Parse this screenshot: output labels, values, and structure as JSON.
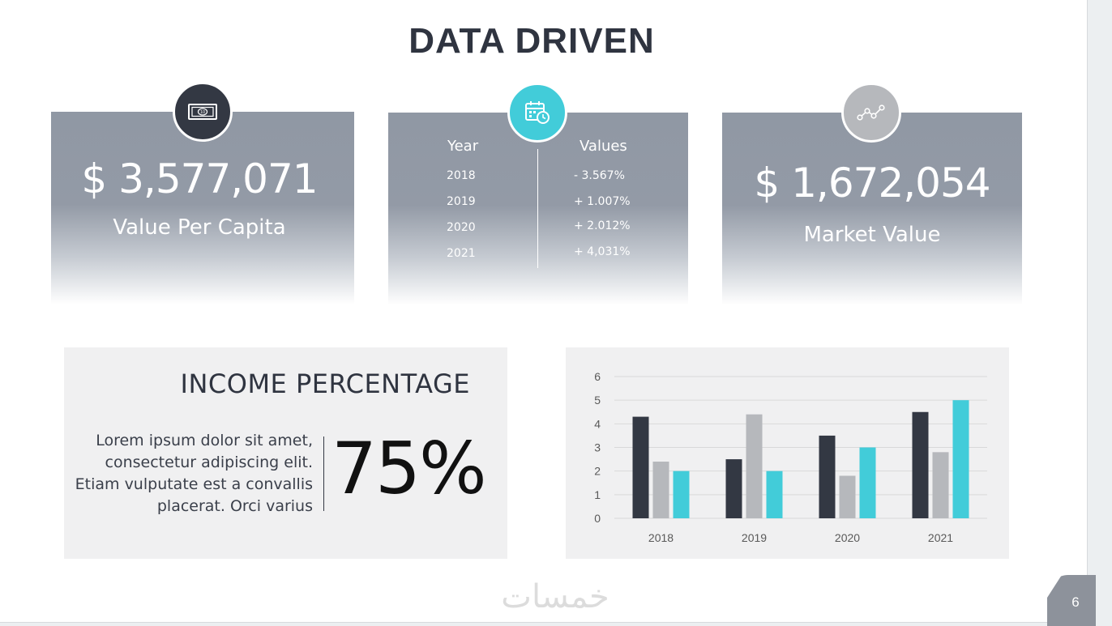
{
  "slide": {
    "title": "DATA DRIVEN",
    "page_number": "6",
    "watermark": "خمسات"
  },
  "cards": [
    {
      "icon": "money-bill-icon",
      "value": "$ 3,577,071",
      "label": "Value Per Capita",
      "badge_color": "#333843"
    },
    {
      "icon": "calendar-clock-icon",
      "badge_color": "#42ccd9",
      "table": {
        "headers": [
          "Year",
          "Values"
        ],
        "rows": [
          {
            "year": "2018",
            "value": "- 3.567%"
          },
          {
            "year": "2019",
            "value": "+ 1.007%"
          },
          {
            "year": "2020",
            "value": "+ 2.012%"
          },
          {
            "year": "2021",
            "value": "+ 4,031%"
          }
        ]
      }
    },
    {
      "icon": "line-graph-icon",
      "value": "$ 1,672,054",
      "label": "Market Value",
      "badge_color": "#b6b8bc"
    }
  ],
  "income": {
    "title": "INCOME PERCENTAGE",
    "text": "Lorem ipsum dolor sit amet, consectetur adipiscing elit. Etiam vulputate est a convallis placerat. Orci varius",
    "percentage": "75%"
  },
  "chart_data": {
    "type": "bar",
    "categories": [
      "2018",
      "2019",
      "2020",
      "2021"
    ],
    "series": [
      {
        "values": [
          4.3,
          2.5,
          3.5,
          4.5
        ],
        "color": "#333843"
      },
      {
        "values": [
          2.4,
          4.4,
          1.8,
          2.8
        ],
        "color": "#b6b8bc"
      },
      {
        "values": [
          2.0,
          2.0,
          3.0,
          5.0
        ],
        "color": "#42ccd9"
      }
    ],
    "ylim": [
      0,
      6
    ],
    "yticks": [
      "0",
      "1",
      "2",
      "3",
      "4",
      "5",
      "6"
    ],
    "grid": true
  }
}
